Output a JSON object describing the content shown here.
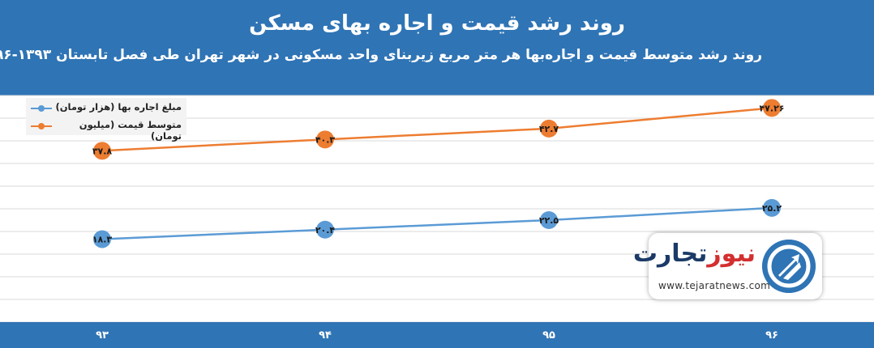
{
  "header": {
    "title": "روند رشد قیمت و اجاره بهای مسکن",
    "subtitle": "روند رشد متوسط قیمت و اجاره‌بها هر متر مربع زیربنای واحد مسکونی در شهر تهران طی فصل تابستان ۱۳۹۳-۱۳۹۶"
  },
  "logo": {
    "name_part1": "تجارت",
    "name_part2": "نیوز",
    "url": "www.tejaratnews.com"
  },
  "chart_data": {
    "type": "line",
    "title": "روند رشد قیمت و اجاره بهای مسکن",
    "subtitle": "روند رشد متوسط قیمت و اجاره‌بها هر متر مربع زیربنای واحد مسکونی در شهر تهران طی فصل تابستان ۱۳۹۳-۱۳۹۶",
    "categories": [
      "۹۳",
      "۹۴",
      "۹۵",
      "۹۶"
    ],
    "x": [
      93,
      94,
      95,
      96
    ],
    "series": [
      {
        "name": "مبلغ اجاره بها (هزار تومان)",
        "color": "#5b9bd5",
        "values": [
          18.3,
          20.4,
          22.5,
          25.2
        ],
        "labels": [
          "۱۸.۳",
          "۲۰.۴",
          "۲۲.۵",
          "۲۵.۲"
        ]
      },
      {
        "name": "متوسط قیمت (میلیون تومان)",
        "color": "#ed7d31",
        "values": [
          37.8,
          40.3,
          42.7,
          47.26
        ],
        "labels": [
          "۳۷.۸",
          "۴۰.۳",
          "۴۲.۷",
          "۴۷.۲۶"
        ]
      }
    ],
    "ylim": [
      0,
      50
    ],
    "grid": true,
    "legend": "top-left"
  }
}
